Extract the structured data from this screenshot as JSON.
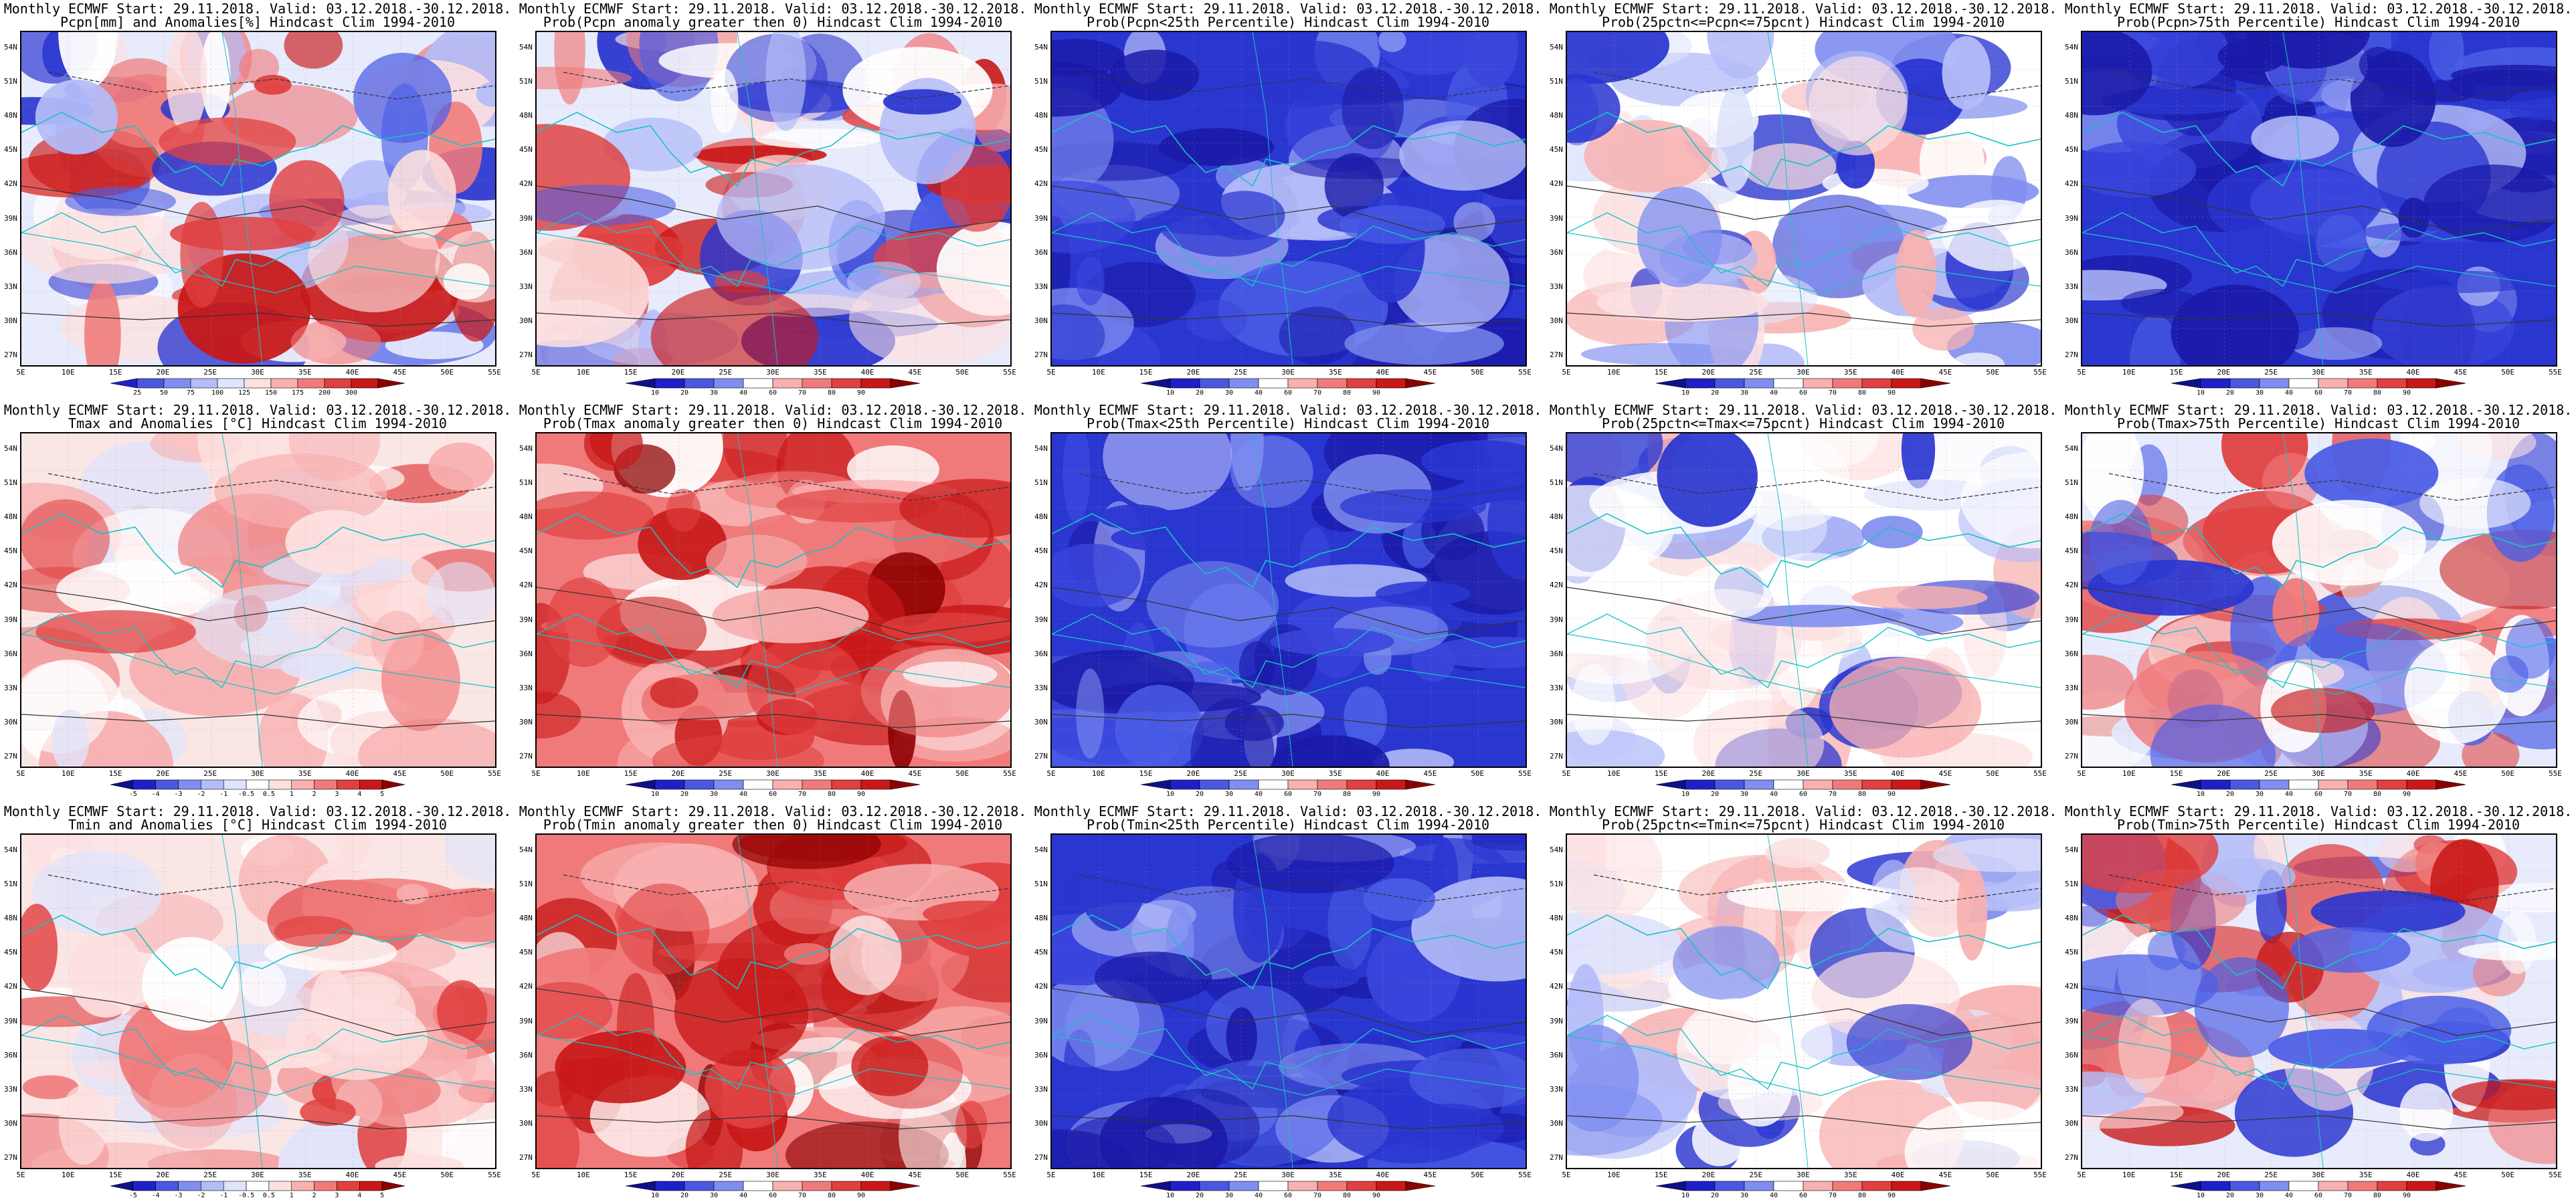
{
  "x_ticks": [
    "5E",
    "10E",
    "15E",
    "20E",
    "25E",
    "30E",
    "35E",
    "40E",
    "45E",
    "50E",
    "55E"
  ],
  "y_ticks": [
    "54N",
    "51N",
    "48N",
    "45N",
    "42N",
    "39N",
    "36N",
    "33N",
    "30N",
    "27N"
  ],
  "scales": {
    "anom_pcp": {
      "labels": [
        "25",
        "50",
        "75",
        "100",
        "125",
        "150",
        "175",
        "200",
        "300"
      ],
      "colors": [
        "#2020c8",
        "#4a58e0",
        "#7f8ef0",
        "#b4bcf8",
        "#e0e4fb",
        "#fde0e0",
        "#f8b0b0",
        "#f07a7a",
        "#e04040",
        "#c81818",
        "#8c0000"
      ]
    },
    "anom_temp": {
      "labels": [
        "-5",
        "-4",
        "-3",
        "-2",
        "-1",
        "-0.5",
        "0.5",
        "1",
        "2",
        "3",
        "4",
        "5"
      ],
      "colors": [
        "#10108a",
        "#2020c8",
        "#4a58e0",
        "#7f8ef0",
        "#b4bcf8",
        "#e0e4fb",
        "#ffffff",
        "#fde0e0",
        "#f8b0b0",
        "#f07a7a",
        "#e04040",
        "#c81818",
        "#8c0000"
      ]
    },
    "prob": {
      "labels": [
        "10",
        "20",
        "30",
        "40",
        "60",
        "70",
        "80",
        "90"
      ],
      "colors": [
        "#10108a",
        "#2020c8",
        "#4a58e0",
        "#7f8ef0",
        "#ffffff",
        "#f8b0b0",
        "#f07a7a",
        "#e04040",
        "#c81818",
        "#8c0000"
      ]
    }
  },
  "panels": [
    {
      "line1": "Monthly ECMWF Start: 29.11.2018. Valid: 03.12.2018.-30.12.2018.",
      "line2": "Pcpn[mm] and Anomalies[%] Hindcast Clim 1994-2010",
      "scale": "anom_pcp",
      "field": "mixed"
    },
    {
      "line1": "Monthly ECMWF Start: 29.11.2018. Valid: 03.12.2018.-30.12.2018.",
      "line2": "Prob(Pcpn anomaly greater then 0) Hindcast Clim 1994-2010",
      "scale": "prob",
      "field": "mixed"
    },
    {
      "line1": "Monthly ECMWF Start: 29.11.2018. Valid: 03.12.2018.-30.12.2018.",
      "line2": "Prob(Pcpn<25th Percentile) Hindcast Clim 1994-2010",
      "scale": "prob",
      "field": "blue"
    },
    {
      "line1": "Monthly ECMWF Start: 29.11.2018. Valid: 03.12.2018.-30.12.2018.",
      "line2": "Prob(25pctn<=Pcpn<=75pcnt) Hindcast Clim 1994-2010",
      "scale": "prob",
      "field": "white"
    },
    {
      "line1": "Monthly ECMWF Start: 29.11.2018. Valid: 03.12.2018.-30.12.2018.",
      "line2": "Prob(Pcpn>75th Percentile) Hindcast Clim 1994-2010",
      "scale": "prob",
      "field": "blue"
    },
    {
      "line1": "Monthly ECMWF Start: 29.11.2018. Valid: 03.12.2018.-30.12.2018.",
      "line2": "Tmax and Anomalies [°C] Hindcast Clim 1994-2010",
      "scale": "anom_temp",
      "field": "lightred"
    },
    {
      "line1": "Monthly ECMWF Start: 29.11.2018. Valid: 03.12.2018.-30.12.2018.",
      "line2": "Prob(Tmax anomaly greater then 0) Hindcast Clim 1994-2010",
      "scale": "prob",
      "field": "red"
    },
    {
      "line1": "Monthly ECMWF Start: 29.11.2018. Valid: 03.12.2018.-30.12.2018.",
      "line2": "Prob(Tmax<25th Percentile) Hindcast Clim 1994-2010",
      "scale": "prob",
      "field": "blue"
    },
    {
      "line1": "Monthly ECMWF Start: 29.11.2018. Valid: 03.12.2018.-30.12.2018.",
      "line2": "Prob(25pctn<=Tmax<=75pcnt) Hindcast Clim 1994-2010",
      "scale": "prob",
      "field": "white"
    },
    {
      "line1": "Monthly ECMWF Start: 29.11.2018. Valid: 03.12.2018.-30.12.2018.",
      "line2": "Prob(Tmax>75th Percentile) Hindcast Clim 1994-2010",
      "scale": "prob",
      "field": "mixed"
    },
    {
      "line1": "Monthly ECMWF Start: 29.11.2018. Valid: 03.12.2018.-30.12.2018.",
      "line2": "Tmin and Anomalies [°C] Hindcast Clim 1994-2010",
      "scale": "anom_temp",
      "field": "lightred"
    },
    {
      "line1": "Monthly ECMWF Start: 29.11.2018. Valid: 03.12.2018.-30.12.2018.",
      "line2": "Prob(Tmin anomaly greater then 0) Hindcast Clim 1994-2010",
      "scale": "prob",
      "field": "red"
    },
    {
      "line1": "Monthly ECMWF Start: 29.11.2018. Valid: 03.12.2018.-30.12.2018.",
      "line2": "Prob(Tmin<25th Percentile) Hindcast Clim 1994-2010",
      "scale": "prob",
      "field": "blue"
    },
    {
      "line1": "Monthly ECMWF Start: 29.11.2018. Valid: 03.12.2018.-30.12.2018.",
      "line2": "Prob(25pctn<=Tmin<=75pcnt) Hindcast Clim 1994-2010",
      "scale": "prob",
      "field": "white"
    },
    {
      "line1": "Monthly ECMWF Start: 29.11.2018. Valid: 03.12.2018.-30.12.2018.",
      "line2": "Prob(Tmin>75th Percentile) Hindcast Clim 1994-2010",
      "scale": "prob",
      "field": "mixed"
    }
  ]
}
